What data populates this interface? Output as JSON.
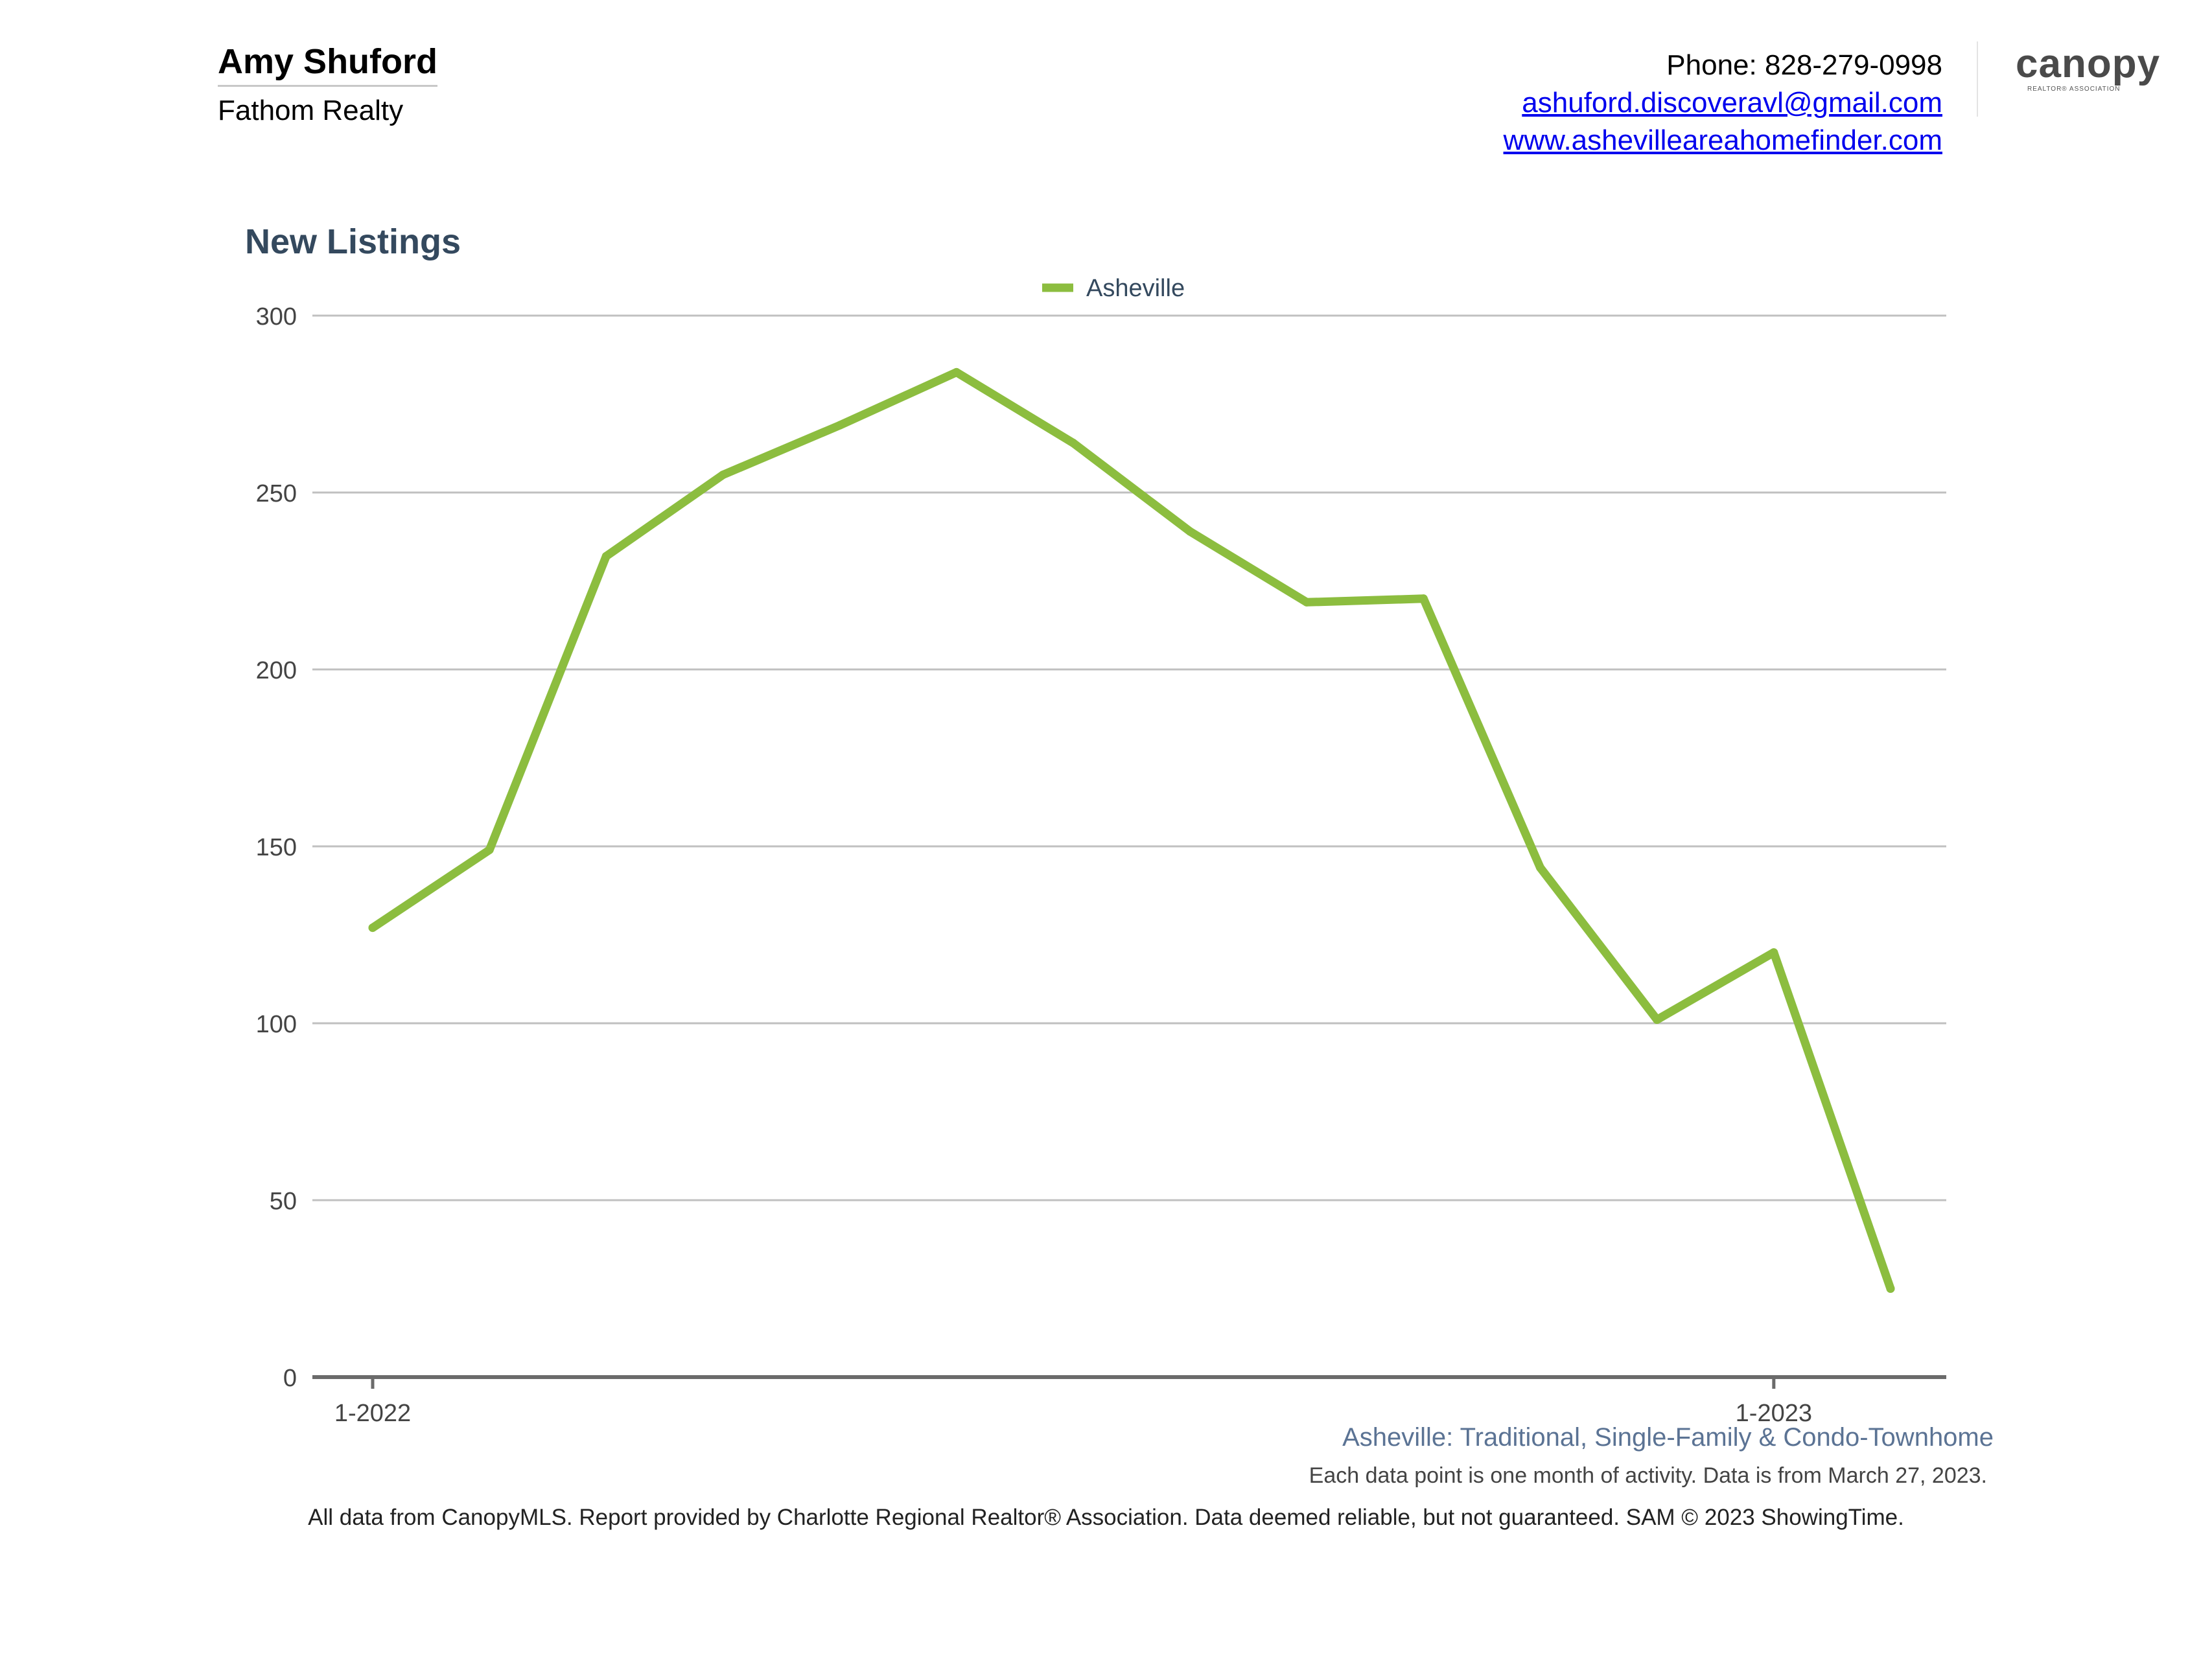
{
  "header": {
    "agent_name": "Amy Shuford",
    "company": "Fathom Realty",
    "phone": "Phone: 828-279-0998",
    "email": "ashuford.discoveravl@gmail.com",
    "website": "www.ashevilleareahomefinder.com",
    "logo_text": "canopy",
    "logo_subtext": "REALTOR® ASSOCIATION"
  },
  "colors": {
    "series": "#8cbd3f",
    "title": "#34495e",
    "grid": "#c0c0c0",
    "axis": "#6b6b6b",
    "subtitle": "#5b7394"
  },
  "chart_data": {
    "type": "line",
    "title": "New Listings",
    "x": [
      "1-2022",
      "2-2022",
      "3-2022",
      "4-2022",
      "5-2022",
      "6-2022",
      "7-2022",
      "8-2022",
      "9-2022",
      "10-2022",
      "11-2022",
      "12-2022",
      "1-2023",
      "2-2023"
    ],
    "x_tick_labels": [
      "1-2022",
      "1-2023"
    ],
    "series": [
      {
        "name": "Asheville",
        "values": [
          127,
          149,
          232,
          255,
          269,
          284,
          264,
          239,
          219,
          220,
          144,
          101,
          120,
          25
        ]
      }
    ],
    "y_ticks": [
      0,
      50,
      100,
      150,
      200,
      250,
      300
    ],
    "ylim": [
      0,
      300
    ],
    "grid": true,
    "legend_position": "top-center"
  },
  "subtitle": "Asheville: Traditional, Single-Family & Condo-Townhome",
  "note": "Each data point is one month of activity. Data is from March 27, 2023.",
  "footer": "All data from CanopyMLS. Report provided by Charlotte Regional Realtor® Association. Data deemed reliable, but not guaranteed. SAM © 2023 ShowingTime."
}
